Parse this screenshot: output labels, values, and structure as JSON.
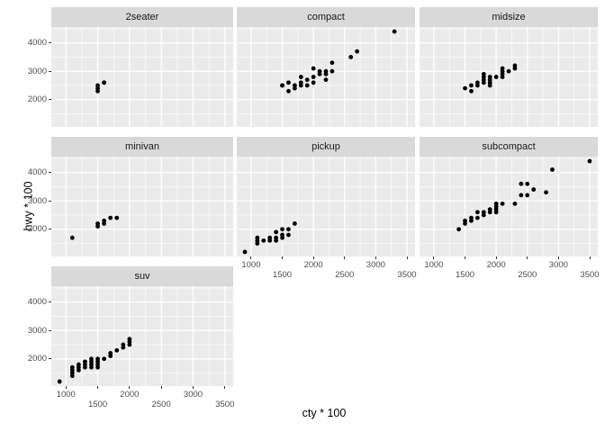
{
  "chart_data": {
    "type": "scatter",
    "title": "",
    "xlabel": "cty * 100",
    "ylabel": "hwy * 100",
    "facet_variable": "class",
    "xlim": [
      770,
      3630
    ],
    "ylim": [
      1040,
      4560
    ],
    "x_major_gridlines": [
      1000,
      1500,
      2000,
      2500,
      3000,
      3500
    ],
    "x_minor_gridlines": [
      1250,
      1750,
      2250,
      2750,
      3250
    ],
    "y_major_gridlines": [
      2000,
      3000,
      4000
    ],
    "y_minor_gridlines": [
      1500,
      2500,
      3500,
      4500
    ],
    "x_ticks": [
      1000,
      1500,
      2000,
      2500,
      3000,
      3500
    ],
    "x_tick_rows": [
      [
        "1000",
        "2000",
        "3000"
      ],
      [
        "1500",
        "2500",
        "3500"
      ]
    ],
    "x_tick_row_values": [
      [
        1000,
        2000,
        3000
      ],
      [
        1500,
        2500,
        3500
      ]
    ],
    "y_ticks": [
      "4000",
      "3000",
      "2000"
    ],
    "y_tick_values": [
      4000,
      3000,
      2000
    ],
    "grid": "on",
    "legend": "none",
    "facets": [
      {
        "label": "2seater",
        "points": [
          [
            1500,
            2300
          ],
          [
            1500,
            2400
          ],
          [
            1500,
            2500
          ],
          [
            1600,
            2600
          ],
          [
            1600,
            2600
          ]
        ]
      },
      {
        "label": "compact",
        "points": [
          [
            1500,
            2500
          ],
          [
            1500,
            2500
          ],
          [
            1600,
            2600
          ],
          [
            1600,
            2300
          ],
          [
            1700,
            2500
          ],
          [
            1700,
            2400
          ],
          [
            1800,
            2800
          ],
          [
            1800,
            2600
          ],
          [
            1800,
            2500
          ],
          [
            1900,
            2700
          ],
          [
            1900,
            2500
          ],
          [
            2000,
            2800
          ],
          [
            2000,
            2600
          ],
          [
            2000,
            3100
          ],
          [
            2100,
            3000
          ],
          [
            2100,
            2900
          ],
          [
            2200,
            2900
          ],
          [
            2200,
            3000
          ],
          [
            2200,
            2700
          ],
          [
            2300,
            3300
          ],
          [
            2300,
            3000
          ],
          [
            2600,
            3500
          ],
          [
            2700,
            3700
          ],
          [
            3300,
            4400
          ]
        ]
      },
      {
        "label": "midsize",
        "points": [
          [
            1500,
            2400
          ],
          [
            1600,
            2300
          ],
          [
            1600,
            2500
          ],
          [
            1700,
            2500
          ],
          [
            1700,
            2600
          ],
          [
            1800,
            2600
          ],
          [
            1800,
            2700
          ],
          [
            1800,
            2800
          ],
          [
            1800,
            2900
          ],
          [
            1900,
            2500
          ],
          [
            1900,
            2600
          ],
          [
            1900,
            2700
          ],
          [
            1900,
            2800
          ],
          [
            2000,
            2800
          ],
          [
            2100,
            2800
          ],
          [
            2100,
            2900
          ],
          [
            2100,
            3000
          ],
          [
            2100,
            3100
          ],
          [
            2200,
            3000
          ],
          [
            2300,
            3100
          ],
          [
            2300,
            3200
          ]
        ]
      },
      {
        "label": "minivan",
        "points": [
          [
            1100,
            1700
          ],
          [
            1500,
            2100
          ],
          [
            1500,
            2200
          ],
          [
            1600,
            2200
          ],
          [
            1600,
            2300
          ],
          [
            1700,
            2400
          ],
          [
            1800,
            2400
          ]
        ]
      },
      {
        "label": "pickup",
        "points": [
          [
            900,
            1200
          ],
          [
            1100,
            1500
          ],
          [
            1100,
            1600
          ],
          [
            1100,
            1700
          ],
          [
            1200,
            1600
          ],
          [
            1300,
            1600
          ],
          [
            1300,
            1700
          ],
          [
            1400,
            1600
          ],
          [
            1400,
            1700
          ],
          [
            1400,
            1900
          ],
          [
            1500,
            1700
          ],
          [
            1500,
            1800
          ],
          [
            1500,
            2000
          ],
          [
            1600,
            1800
          ],
          [
            1600,
            2000
          ],
          [
            1700,
            2200
          ]
        ]
      },
      {
        "label": "subcompact",
        "points": [
          [
            1400,
            2000
          ],
          [
            1500,
            2200
          ],
          [
            1500,
            2300
          ],
          [
            1600,
            2300
          ],
          [
            1600,
            2400
          ],
          [
            1700,
            2400
          ],
          [
            1700,
            2600
          ],
          [
            1800,
            2500
          ],
          [
            1800,
            2600
          ],
          [
            1900,
            2600
          ],
          [
            1900,
            2700
          ],
          [
            2000,
            2600
          ],
          [
            2000,
            2700
          ],
          [
            2000,
            2800
          ],
          [
            2000,
            2900
          ],
          [
            2100,
            2900
          ],
          [
            2300,
            2900
          ],
          [
            2400,
            3200
          ],
          [
            2500,
            3200
          ],
          [
            2600,
            3400
          ],
          [
            2400,
            3600
          ],
          [
            2500,
            3600
          ],
          [
            2800,
            3300
          ],
          [
            2900,
            4100
          ],
          [
            3500,
            4400
          ]
        ]
      },
      {
        "label": "suv",
        "points": [
          [
            900,
            1200
          ],
          [
            1100,
            1400
          ],
          [
            1100,
            1500
          ],
          [
            1100,
            1600
          ],
          [
            1100,
            1700
          ],
          [
            1200,
            1600
          ],
          [
            1200,
            1700
          ],
          [
            1200,
            1800
          ],
          [
            1300,
            1700
          ],
          [
            1300,
            1800
          ],
          [
            1300,
            1900
          ],
          [
            1400,
            1700
          ],
          [
            1400,
            1800
          ],
          [
            1400,
            1900
          ],
          [
            1400,
            2000
          ],
          [
            1500,
            1700
          ],
          [
            1500,
            1800
          ],
          [
            1500,
            1900
          ],
          [
            1500,
            2000
          ],
          [
            1600,
            2000
          ],
          [
            1700,
            2100
          ],
          [
            1700,
            2200
          ],
          [
            1800,
            2300
          ],
          [
            1900,
            2400
          ],
          [
            1900,
            2500
          ],
          [
            2000,
            2500
          ],
          [
            2000,
            2600
          ],
          [
            2000,
            2700
          ]
        ]
      }
    ]
  },
  "colors": {
    "background": "#ffffff",
    "strip_fill": "#d9d9d9",
    "strip_text": "#1a1a1a",
    "panel_fill": "#ebebeb",
    "gridline": "#ffffff",
    "point": "#000000",
    "axis_text": "#4d4d4d",
    "axis_title": "#000000",
    "tick_mark": "#333333"
  }
}
